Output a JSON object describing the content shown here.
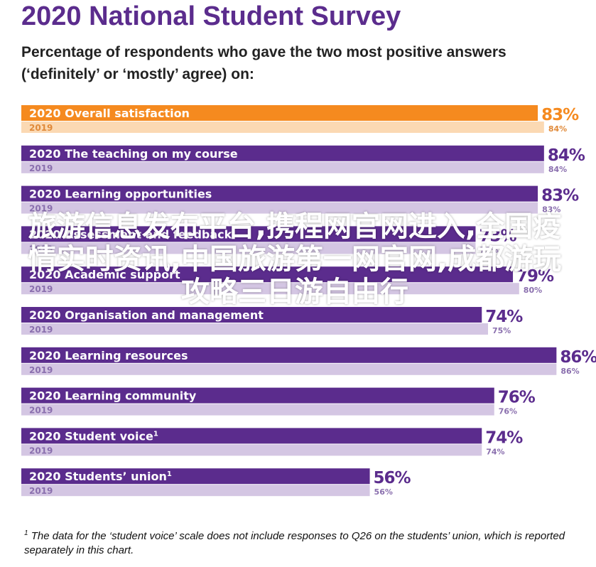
{
  "title": "2020 National Student Survey",
  "subtitle": "Percentage of respondents who gave the two most positive answers (‘definitely’ or ‘mostly’ agree) on:",
  "chart_data": {
    "type": "bar",
    "orientation": "horizontal",
    "year_current": "2020",
    "year_previous": "2019",
    "categories": [
      "Overall satisfaction",
      "The teaching on my course",
      "Learning opportunities",
      "Assessment and feedback",
      "Academic support",
      "Organisation and management",
      "Learning resources",
      "Learning community",
      "Student voice",
      "Students’ union"
    ],
    "category_footnotes": [
      "",
      "",
      "",
      "",
      "",
      "",
      "",
      "",
      "1",
      "1"
    ],
    "series": [
      {
        "name": "2020",
        "values": [
          83,
          84,
          83,
          73,
          79,
          74,
          86,
          76,
          74,
          56
        ]
      },
      {
        "name": "2019",
        "values": [
          84,
          84,
          83,
          73,
          80,
          75,
          86,
          76,
          74,
          56
        ]
      }
    ],
    "colors": {
      "highlight_2020": "#f58a1f",
      "highlight_2019": "#fbd9b3",
      "bar_2020": "#5b2c8d",
      "bar_2019": "#d4c6e3",
      "label_2019_highlight": "#e08a3a",
      "label_2019": "#8a6fae"
    },
    "xlim": [
      0,
      100
    ]
  },
  "footnote": {
    "marker": "1",
    "text": "The data for the ‘student voice’ scale does not include responses to Q26 on the students’ union, which is reported separately in this chart."
  },
  "watermark": "旅游信息发布平台,携程网官网进入,全国疫情实时资讯,中国旅游第一网官网,成都游玩攻略三日游自由行"
}
